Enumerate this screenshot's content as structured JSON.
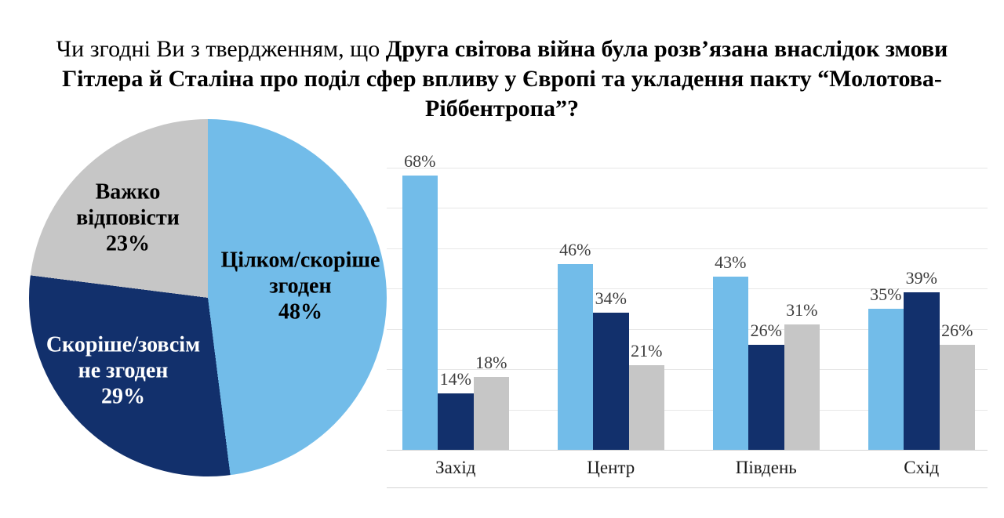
{
  "title": {
    "regular": "Чи згодні Ви з твердженням, що ",
    "bold": "Друга світова війна була розв’язана внаслідок змови Гітлера й Сталіна про поділ сфер впливу у Європі та укладення пакту “Молотова-Ріббентропа”?"
  },
  "colors": {
    "agree": "#72bce9",
    "disagree": "#12306c",
    "hard_to_say": "#c6c6c6",
    "gridline": "#e7e7e7",
    "axis_line": "#d4d4d4"
  },
  "chart_data": [
    {
      "type": "pie",
      "start_angle_deg": 0,
      "direction": "clockwise",
      "value_suffix": "%",
      "slices": [
        {
          "label": "Цілком/скоріше згоден",
          "value": 48,
          "color": "#72bce9",
          "text_color": "#000000"
        },
        {
          "label": "Скоріше/зовсім не згоден",
          "value": 29,
          "color": "#12306c",
          "text_color": "#ffffff"
        },
        {
          "label": "Важко відповісти",
          "value": 23,
          "color": "#c6c6c6",
          "text_color": "#000000"
        }
      ]
    },
    {
      "type": "bar",
      "categories": [
        "Захід",
        "Центр",
        "Південь",
        "Схід"
      ],
      "series": [
        {
          "name": "Цілком/скоріше згоден",
          "color": "#72bce9",
          "values": [
            68,
            46,
            43,
            35
          ]
        },
        {
          "name": "Скоріше/зовсім не згоден",
          "color": "#12306c",
          "values": [
            14,
            34,
            26,
            39
          ]
        },
        {
          "name": "Важко відповісти",
          "color": "#c6c6c6",
          "values": [
            18,
            21,
            31,
            26
          ]
        }
      ],
      "value_suffix": "%",
      "ylim": [
        0,
        70
      ],
      "gridline_step": 10,
      "grid": true,
      "legend": "none",
      "xlabel": "",
      "ylabel": ""
    }
  ]
}
